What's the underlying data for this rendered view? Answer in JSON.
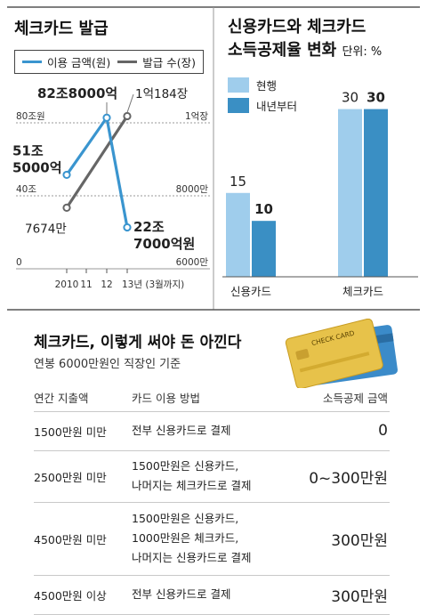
{
  "left_chart": {
    "title": "체크카드 발급",
    "legend": [
      {
        "label": "이용 금액(원)",
        "color": "#3a95cf"
      },
      {
        "label": "발급 수(장)",
        "color": "#666666"
      }
    ],
    "left_ticks": [
      "80조원",
      "40조",
      "0"
    ],
    "right_ticks": [
      "1억장",
      "8000만",
      "6000만"
    ],
    "x_labels": [
      "2010",
      "11",
      "12",
      "13년 (3월까지)"
    ],
    "annotations": {
      "usage_2010": [
        "51조",
        "5000억"
      ],
      "usage_2012": "82조8000억",
      "usage_2013": [
        "22조",
        "7000억원"
      ],
      "cards_2010": "7674만",
      "cards_2013": "1억184장"
    }
  },
  "right_chart": {
    "title_lines": [
      "신용카드와 체크카드",
      "소득공제율 변화"
    ],
    "unit": "단위: %",
    "legend": [
      {
        "label": "현행",
        "color": "#9fcdec"
      },
      {
        "label": "내년부터",
        "color": "#3a8fc4"
      }
    ],
    "value_labels": {
      "credit_current": "15",
      "credit_next": "10",
      "check_current": "30",
      "check_next": "30"
    }
  },
  "bottom": {
    "title": "체크카드, 이렇게 써야 돈 아낀다",
    "subtitle": "연봉 6000만원인 직장인 기준",
    "card_text": "CHECK CARD",
    "headers": [
      "연간 지출액",
      "카드 이용 방법",
      "소득공제 금액"
    ],
    "rows": [
      {
        "spend": "1500만원 미만",
        "method": [
          "전부 신용카드로 결제"
        ],
        "amount": "0"
      },
      {
        "spend": "2500만원 미만",
        "method": [
          "1500만원은 신용카드,",
          "나머지는 체크카드로 결제"
        ],
        "amount": "0~300만원"
      },
      {
        "spend": "4500만원 미만",
        "method": [
          "1500만원은 신용카드,",
          "1000만원은 체크카드,",
          "나머지는 신용카드로 결제"
        ],
        "amount": "300만원"
      },
      {
        "spend": "4500만원 이상",
        "method": [
          "전부 신용카드로 결제"
        ],
        "amount": "300만원"
      }
    ]
  },
  "chart_data": [
    {
      "type": "line",
      "title": "체크카드 발급",
      "x": [
        "2010",
        "11",
        "12",
        "13년 (3월까지)"
      ],
      "series": [
        {
          "name": "이용 금액(원)",
          "axis": "left",
          "unit": "조원",
          "values": [
            51.5,
            null,
            82.8,
            22.7
          ]
        },
        {
          "name": "발급 수(장)",
          "axis": "right",
          "unit": "만장",
          "values": [
            7674,
            null,
            null,
            10184
          ]
        }
      ],
      "left_ylim": [
        0,
        80
      ],
      "right_ylim": [
        6000,
        10000
      ]
    },
    {
      "type": "bar",
      "title": "신용카드와 체크카드 소득공제율 변화",
      "ylabel": "단위: %",
      "categories": [
        "신용카드",
        "체크카드"
      ],
      "series": [
        {
          "name": "현행",
          "values": [
            15,
            30
          ]
        },
        {
          "name": "내년부터",
          "values": [
            10,
            30
          ]
        }
      ],
      "ylim": [
        0,
        32
      ]
    }
  ]
}
